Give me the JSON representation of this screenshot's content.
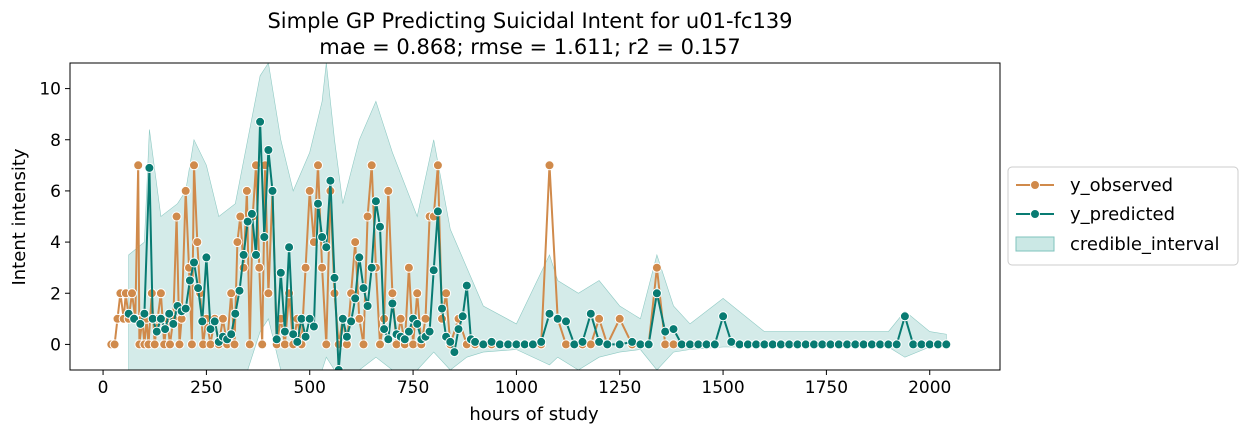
{
  "chart_data": {
    "type": "line",
    "title": "Simple GP Predicting Suicidal Intent for u01-fc139",
    "subtitle": "mae = 0.868; rmse = 1.611; r2 = 0.157",
    "xlabel": "hours of study",
    "ylabel": "Intent intensity",
    "xlim": [
      -80,
      2170
    ],
    "ylim": [
      -1,
      11
    ],
    "xticks": [
      0,
      250,
      500,
      750,
      1000,
      1250,
      1500,
      1750,
      2000
    ],
    "yticks": [
      0,
      2,
      4,
      6,
      8,
      10
    ],
    "grid": false,
    "legend_position": "right",
    "colors": {
      "observed": "#d08a4b",
      "predicted": "#087b72",
      "interval": "#a9d8d4"
    },
    "series": [
      {
        "name": "y_observed",
        "x": [
          20,
          28,
          35,
          42,
          50,
          55,
          62,
          70,
          78,
          85,
          88,
          95,
          100,
          105,
          110,
          118,
          125,
          132,
          140,
          148,
          155,
          162,
          170,
          178,
          185,
          190,
          200,
          208,
          215,
          220,
          228,
          235,
          242,
          250,
          260,
          270,
          280,
          290,
          300,
          310,
          318,
          325,
          332,
          340,
          348,
          355,
          362,
          370,
          378,
          385,
          392,
          400,
          410,
          420,
          430,
          440,
          450,
          460,
          470,
          480,
          490,
          500,
          510,
          520,
          530,
          540,
          550,
          560,
          570,
          580,
          590,
          600,
          610,
          620,
          630,
          640,
          650,
          660,
          670,
          680,
          690,
          700,
          710,
          720,
          730,
          740,
          750,
          760,
          770,
          780,
          790,
          800,
          810,
          820,
          830,
          840,
          860,
          880,
          900,
          920,
          940,
          960,
          980,
          1000,
          1020,
          1040,
          1060,
          1080,
          1100,
          1120,
          1140,
          1160,
          1180,
          1200,
          1220,
          1250,
          1280,
          1300,
          1320,
          1340,
          1360,
          1380
        ],
        "y": [
          0,
          0,
          1,
          2,
          1,
          2,
          1,
          2,
          1,
          7,
          0,
          1,
          0,
          1,
          0,
          2,
          0,
          1,
          2,
          0,
          1,
          0,
          1,
          5,
          0,
          1,
          6,
          3,
          0,
          7,
          4,
          2,
          0,
          1,
          0,
          1,
          0,
          1,
          0,
          2,
          0,
          4,
          5,
          3,
          6,
          0,
          5,
          7,
          3,
          0,
          7,
          2,
          6,
          0,
          1,
          0,
          2,
          0,
          1,
          0,
          3,
          6,
          4,
          7,
          3,
          0,
          6,
          2,
          0,
          1,
          0,
          2,
          4,
          1,
          0,
          5,
          7,
          3,
          0,
          1,
          6,
          2,
          0,
          1,
          0,
          3,
          0,
          2,
          0,
          1,
          5,
          5,
          7,
          1,
          2,
          0,
          1,
          0,
          0,
          0,
          0,
          0,
          0,
          0,
          0,
          0,
          0,
          7,
          1,
          0,
          0,
          0,
          0,
          1,
          0,
          1,
          0,
          0,
          0,
          3,
          0,
          0
        ]
      },
      {
        "name": "y_predicted",
        "x": [
          62,
          75,
          90,
          100,
          112,
          120,
          130,
          140,
          150,
          160,
          170,
          180,
          190,
          200,
          210,
          220,
          230,
          240,
          250,
          260,
          270,
          280,
          290,
          300,
          310,
          320,
          330,
          340,
          350,
          360,
          370,
          380,
          390,
          400,
          410,
          420,
          430,
          440,
          450,
          460,
          470,
          480,
          490,
          500,
          510,
          520,
          530,
          540,
          550,
          560,
          570,
          580,
          590,
          600,
          610,
          620,
          630,
          640,
          650,
          660,
          670,
          680,
          690,
          700,
          710,
          720,
          730,
          740,
          750,
          760,
          770,
          780,
          790,
          800,
          810,
          820,
          830,
          840,
          850,
          860,
          870,
          880,
          890,
          900,
          920,
          940,
          960,
          980,
          1000,
          1020,
          1040,
          1060,
          1080,
          1100,
          1120,
          1140,
          1160,
          1180,
          1200,
          1220,
          1250,
          1280,
          1300,
          1320,
          1340,
          1360,
          1380,
          1400,
          1420,
          1440,
          1460,
          1480,
          1500,
          1520,
          1540,
          1560,
          1580,
          1600,
          1620,
          1640,
          1660,
          1680,
          1700,
          1720,
          1740,
          1760,
          1780,
          1800,
          1820,
          1840,
          1860,
          1880,
          1900,
          1920,
          1940,
          1960,
          1980,
          2000,
          2020,
          2040
        ],
        "y": [
          1.2,
          1.0,
          0.8,
          1.2,
          6.9,
          1.0,
          0.5,
          1.0,
          0.6,
          1.2,
          0.8,
          1.5,
          1.3,
          1.4,
          2.5,
          3.2,
          2.2,
          0.9,
          3.4,
          0.6,
          0.9,
          0.1,
          0.3,
          0.2,
          0.4,
          1.2,
          2.1,
          3.5,
          4.8,
          5.1,
          3.5,
          8.7,
          4.2,
          7.6,
          6.0,
          0.2,
          2.8,
          0.5,
          3.8,
          0.4,
          0.1,
          1.0,
          0.3,
          1.0,
          0.7,
          5.5,
          4.2,
          3.8,
          6.4,
          2.6,
          -1.0,
          1.0,
          0.3,
          0.9,
          1.8,
          3.4,
          2.2,
          1.5,
          3.0,
          5.6,
          4.6,
          0.6,
          0.2,
          1.6,
          0.4,
          0.3,
          0.2,
          0.5,
          1.0,
          0.8,
          0.2,
          0.3,
          0.5,
          2.9,
          5.2,
          1.4,
          0.3,
          0.1,
          -0.3,
          0.6,
          1.1,
          2.3,
          0.2,
          0.1,
          0.0,
          0.1,
          0.0,
          0.0,
          0.0,
          0.0,
          0.0,
          0.1,
          1.2,
          1.0,
          0.9,
          0.0,
          0.1,
          1.2,
          0.1,
          0.0,
          0.0,
          0.1,
          0.0,
          0.0,
          2.0,
          0.5,
          0.6,
          0.0,
          0.0,
          0.0,
          0.0,
          0.0,
          1.1,
          0.1,
          0.0,
          0.0,
          0.0,
          0.0,
          0.0,
          0.0,
          0.0,
          0.0,
          0.0,
          0.0,
          0.0,
          0.0,
          0.0,
          0.0,
          0.0,
          0.0,
          0.0,
          0.0,
          0.0,
          0.0,
          1.1,
          0.0,
          0.0,
          0.0,
          0.0,
          0.0
        ]
      },
      {
        "name": "credible_interval",
        "x": [
          62,
          100,
          112,
          140,
          180,
          200,
          220,
          250,
          280,
          320,
          350,
          380,
          400,
          430,
          460,
          500,
          530,
          540,
          560,
          580,
          620,
          660,
          700,
          760,
          800,
          840,
          880,
          920,
          1000,
          1080,
          1100,
          1150,
          1200,
          1250,
          1300,
          1340,
          1380,
          1420,
          1500,
          1600,
          1700,
          1800,
          1900,
          1940,
          2000,
          2040
        ],
        "lower": [
          -1,
          -1,
          -1,
          -1,
          -1,
          -1,
          -1,
          -1,
          -1,
          -1,
          -1,
          0.5,
          1.0,
          -1,
          -1,
          -1,
          -1,
          -0.5,
          -1,
          -1,
          -1,
          -0.5,
          -1,
          -1,
          -0.3,
          -1,
          -0.5,
          -0.3,
          -0.2,
          -0.8,
          -0.5,
          -1,
          -0.5,
          -0.3,
          -0.2,
          -1,
          -0.3,
          -0.2,
          -0.1,
          -0.1,
          -0.1,
          -0.1,
          -0.1,
          -0.5,
          -0.1,
          -0.1
        ],
        "upper": [
          3.5,
          4,
          8.4,
          5,
          5.5,
          6,
          8,
          7,
          5,
          5.5,
          8,
          10.5,
          11,
          8,
          6,
          7.5,
          9.5,
          11,
          8,
          5.5,
          8,
          9.5,
          7.5,
          5,
          8,
          4.5,
          3,
          1.5,
          0.8,
          3.5,
          2.5,
          2,
          2.5,
          1.5,
          1,
          3.5,
          1.5,
          0.8,
          1.8,
          0.5,
          0.5,
          0.5,
          0.5,
          1.3,
          0.5,
          0.4
        ]
      }
    ]
  },
  "legend": {
    "observed": "y_observed",
    "predicted": "y_predicted",
    "interval": "credible_interval"
  }
}
